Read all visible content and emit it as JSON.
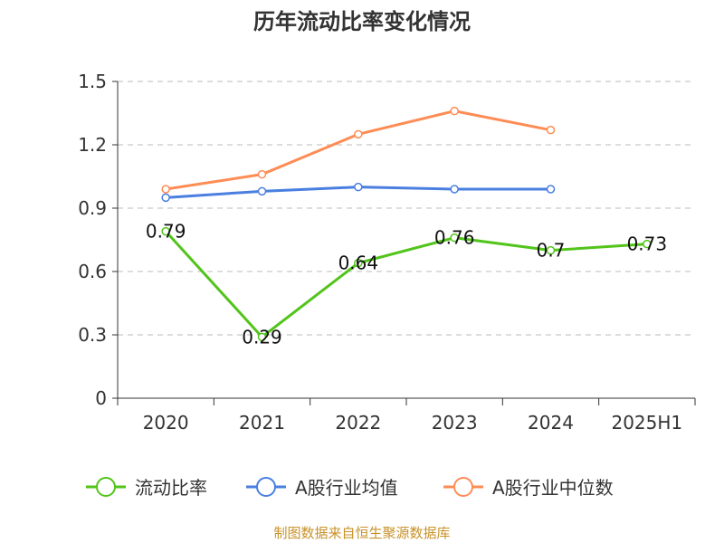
{
  "chart_data": {
    "type": "line",
    "title": "历年流动比率变化情况",
    "categories": [
      "2020",
      "2021",
      "2022",
      "2023",
      "2024",
      "2025H1"
    ],
    "ylim": [
      0,
      1.5
    ],
    "yticks": [
      "0",
      "0.3",
      "0.6",
      "0.9",
      "1.2",
      "1.5"
    ],
    "grid": true,
    "legend_position": "bottom",
    "series": [
      {
        "name": "流动比率",
        "color": "#52c41a",
        "values": [
          0.79,
          0.29,
          0.64,
          0.76,
          0.7,
          0.73
        ],
        "labels": [
          "0.79",
          "0.29",
          "0.64",
          "0.76",
          "0.7",
          "0.73"
        ]
      },
      {
        "name": "A股行业均值",
        "color": "#4a7fe0",
        "values": [
          0.95,
          0.98,
          1.0,
          0.99,
          0.99,
          null
        ]
      },
      {
        "name": "A股行业中位数",
        "color": "#ff8c55",
        "values": [
          0.99,
          1.06,
          1.25,
          1.36,
          1.27,
          null
        ]
      }
    ]
  },
  "source": "制图数据来自恒生聚源数据库"
}
